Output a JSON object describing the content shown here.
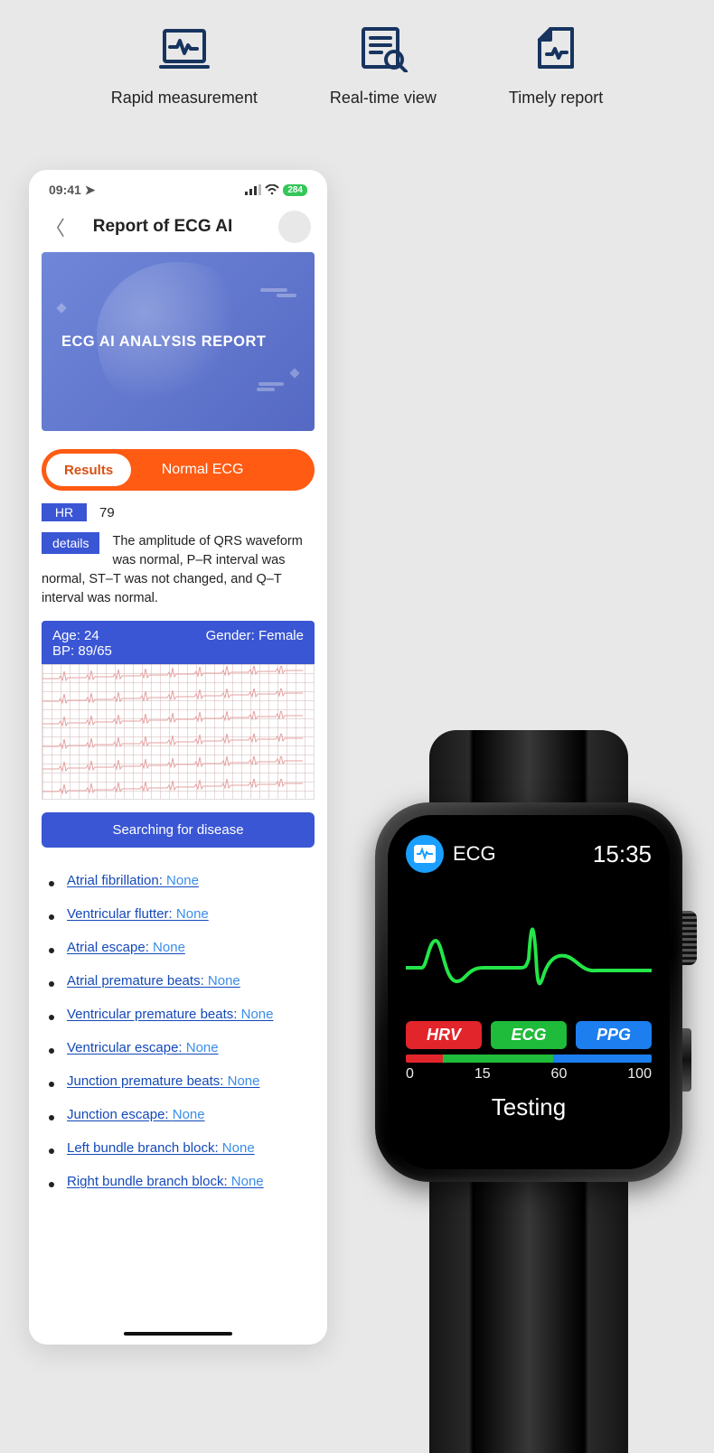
{
  "colors": {
    "page_bg": "#e8e8e8",
    "navy": "#17345f",
    "orange": "#ff5b13",
    "orange_text": "#d85012",
    "blue_tag": "#3a56d4",
    "link_blue": "#1449ba",
    "value_blue": "#3a8de8",
    "hero_grad_from": "#7087d8",
    "hero_grad_to": "#5569c4",
    "battery_green": "#34c759",
    "watch_blue": "#1a9fff",
    "hrv_red": "#e2252b",
    "ecg_green": "#1fbb3a",
    "ppg_blue": "#1d7ef0",
    "wave_green": "#23e648"
  },
  "features": [
    {
      "icon": "monitor-pulse-icon",
      "label": "Rapid measurement"
    },
    {
      "icon": "doc-search-icon",
      "label": "Real-time view"
    },
    {
      "icon": "file-pulse-icon",
      "label": "Timely report"
    }
  ],
  "phone": {
    "status": {
      "time": "09:41",
      "battery_text": "284"
    },
    "title": "Report of ECG AI",
    "hero_text": "ECG AI ANALYSIS REPORT",
    "pill": {
      "button": "Results",
      "label": "Normal ECG"
    },
    "hr": {
      "tag": "HR",
      "value": "79"
    },
    "details": {
      "tag": "details",
      "text": "The amplitude of QRS waveform was normal, P–R interval was normal, ST–T was not changed, and Q–T interval was normal."
    },
    "info": {
      "age_label": "Age:",
      "age": "24",
      "gender_label": "Gender:",
      "gender": "Female",
      "bp_label": "BP:",
      "bp": "89/65"
    },
    "ecg_chart": {
      "type": "line",
      "rows": 6,
      "line_color": "#e6a0a0",
      "grid_color": "#e8d4d4",
      "background_color": "#ffffff"
    },
    "search_button": "Searching for disease",
    "diseases": [
      {
        "label": "Atrial fibrillation:",
        "value": "None"
      },
      {
        "label": "Ventricular flutter:",
        "value": "None"
      },
      {
        "label": "Atrial escape:",
        "value": "None"
      },
      {
        "label": "Atrial premature beats:",
        "value": "None"
      },
      {
        "label": "Ventricular premature beats:",
        "value": "None"
      },
      {
        "label": "Ventricular escape:",
        "value": "None"
      },
      {
        "label": "Junction premature beats:",
        "value": "None"
      },
      {
        "label": "Junction escape:",
        "value": "None"
      },
      {
        "label": "Left bundle branch block:",
        "value": "None"
      },
      {
        "label": "Right bundle branch block:",
        "value": "None"
      }
    ]
  },
  "watch": {
    "title": "ECG",
    "time": "15:35",
    "wave": {
      "type": "line",
      "stroke": "#23e648",
      "stroke_width": 4,
      "background": "#000000"
    },
    "pills": [
      {
        "label": "HRV",
        "color": "#e2252b"
      },
      {
        "label": "ECG",
        "color": "#1fbb3a"
      },
      {
        "label": "PPG",
        "color": "#1d7ef0"
      }
    ],
    "progress": {
      "segments": [
        {
          "color": "#e2252b",
          "flex": 15
        },
        {
          "color": "#1fbb3a",
          "flex": 45
        },
        {
          "color": "#1d7ef0",
          "flex": 40
        }
      ]
    },
    "scale": [
      "0",
      "15",
      "60",
      "100"
    ],
    "status": "Testing"
  }
}
